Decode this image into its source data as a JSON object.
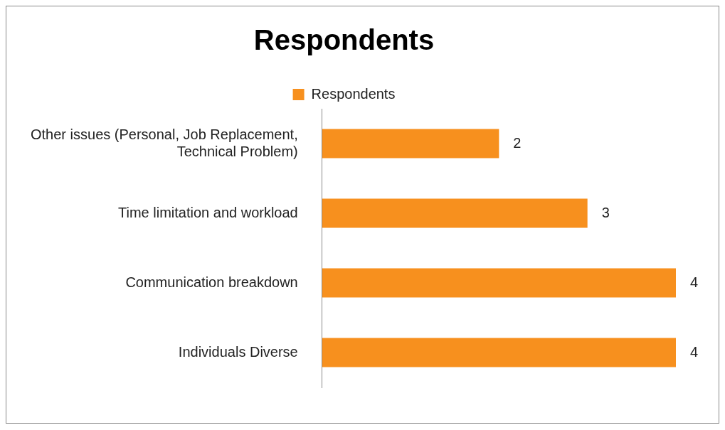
{
  "chart_data": {
    "type": "bar",
    "orientation": "horizontal",
    "title": "Respondents",
    "categories": [
      "Other issues (Personal, Job Replacement, Technical Problem)",
      "Time limitation and workload",
      "Communication breakdown",
      "Individuals Diverse"
    ],
    "series": [
      {
        "name": "Respondents",
        "color": "#f7901e",
        "values": [
          2,
          3,
          4,
          4
        ]
      }
    ],
    "data_labels": true,
    "legend": "top"
  }
}
